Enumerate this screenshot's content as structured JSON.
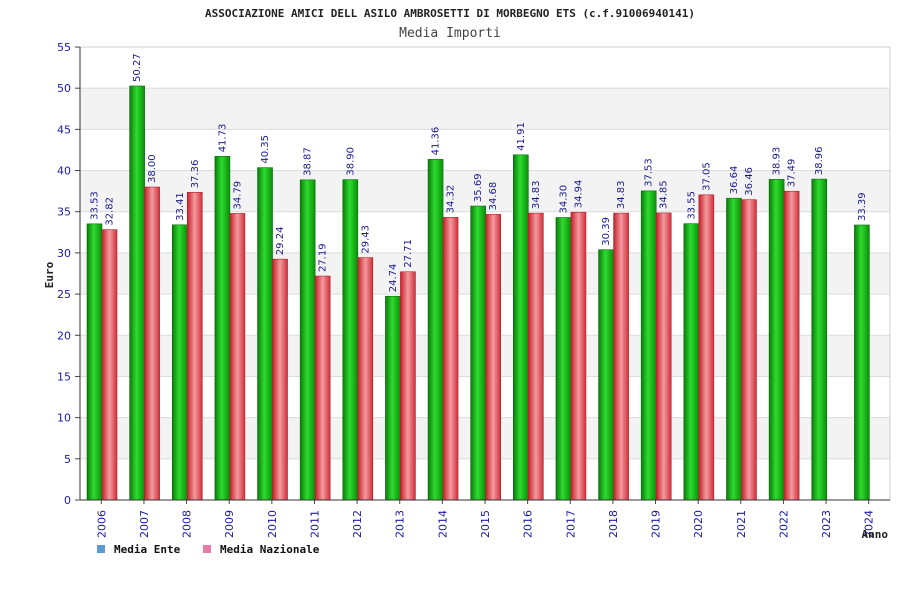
{
  "chart_data": {
    "type": "bar",
    "title": "ASSOCIAZIONE AMICI DELL ASILO AMBROSETTI DI MORBEGNO ETS (c.f.91006940141)",
    "subtitle": "Media Importi",
    "xlabel": "Anno",
    "ylabel": "Euro",
    "ylim": [
      0,
      55
    ],
    "yticks": [
      0,
      5,
      10,
      15,
      20,
      25,
      30,
      35,
      40,
      45,
      50,
      55
    ],
    "grid": true,
    "legend_position": "bottom-left",
    "categories": [
      "2006",
      "2007",
      "2008",
      "2009",
      "2010",
      "2011",
      "2012",
      "2013",
      "2014",
      "2015",
      "2016",
      "2017",
      "2018",
      "2019",
      "2020",
      "2021",
      "2022",
      "2023",
      "2024"
    ],
    "series": [
      {
        "name": "Media Ente",
        "legend_color": "#5b9bd5",
        "bar_color": "#1aa81a",
        "values": [
          33.53,
          50.27,
          33.41,
          41.73,
          40.35,
          38.87,
          38.9,
          24.74,
          41.36,
          35.69,
          41.91,
          34.3,
          30.39,
          37.53,
          33.55,
          36.64,
          38.93,
          38.96,
          33.39
        ],
        "labels": [
          "33.53",
          "50.27",
          "33.41",
          "41.73",
          "40.35",
          "38.87",
          "38.90",
          "24.74",
          "41.36",
          "35.69",
          "41.91",
          "34.30",
          "30.39",
          "37.53",
          "33.55",
          "36.64",
          "38.93",
          "38.96",
          "33.39"
        ]
      },
      {
        "name": "Media Nazionale",
        "legend_color": "#e87aa8",
        "bar_color": "#e8454d",
        "values": [
          32.82,
          38.0,
          37.36,
          34.79,
          29.24,
          27.19,
          29.43,
          27.71,
          34.32,
          34.68,
          34.83,
          34.94,
          34.83,
          34.85,
          37.05,
          36.46,
          37.49,
          null,
          null
        ],
        "labels": [
          "32.82",
          "38.00",
          "37.36",
          "34.79",
          "29.24",
          "27.19",
          "29.43",
          "27.71",
          "34.32",
          "34.68",
          "34.83",
          "34.94",
          "34.83",
          "34.85",
          "37.05",
          "36.46",
          "37.49",
          "",
          ""
        ]
      }
    ]
  }
}
